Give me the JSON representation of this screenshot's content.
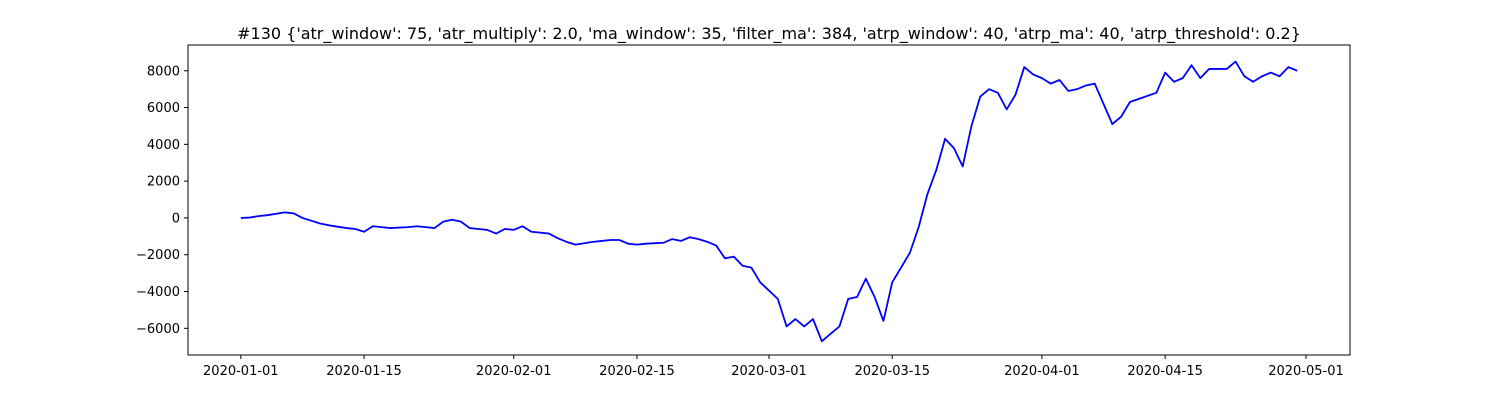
{
  "chart_data": {
    "type": "line",
    "title": "#130 {'atr_window': 75, 'atr_multiply': 2.0, 'ma_window': 35, 'filter_ma': 384, 'atrp_window': 40, 'atrp_ma': 40, 'atrp_threshold': 0.2}",
    "color": "#0000ff",
    "x": [
      "2020-01-01",
      "2020-01-02",
      "2020-01-03",
      "2020-01-04",
      "2020-01-06",
      "2020-01-07",
      "2020-01-08",
      "2020-01-09",
      "2020-01-10",
      "2020-01-11",
      "2020-01-13",
      "2020-01-14",
      "2020-01-15",
      "2020-01-16",
      "2020-01-17",
      "2020-01-18",
      "2020-01-20",
      "2020-01-21",
      "2020-01-22",
      "2020-01-23",
      "2020-01-24",
      "2020-01-25",
      "2020-01-26",
      "2020-01-27",
      "2020-01-28",
      "2020-01-29",
      "2020-01-30",
      "2020-01-31",
      "2020-02-01",
      "2020-02-02",
      "2020-02-03",
      "2020-02-04",
      "2020-02-05",
      "2020-02-06",
      "2020-02-07",
      "2020-02-08",
      "2020-02-10",
      "2020-02-11",
      "2020-02-12",
      "2020-02-13",
      "2020-02-14",
      "2020-02-15",
      "2020-02-16",
      "2020-02-18",
      "2020-02-19",
      "2020-02-20",
      "2020-02-21",
      "2020-02-22",
      "2020-02-23",
      "2020-02-24",
      "2020-02-25",
      "2020-02-26",
      "2020-02-27",
      "2020-02-28",
      "2020-02-29",
      "2020-03-02",
      "2020-03-03",
      "2020-03-04",
      "2020-03-05",
      "2020-03-06",
      "2020-03-07",
      "2020-03-09",
      "2020-03-10",
      "2020-03-11",
      "2020-03-12",
      "2020-03-13",
      "2020-03-14",
      "2020-03-15",
      "2020-03-17",
      "2020-03-18",
      "2020-03-19",
      "2020-03-20",
      "2020-03-21",
      "2020-03-22",
      "2020-03-23",
      "2020-03-24",
      "2020-03-25",
      "2020-03-26",
      "2020-03-27",
      "2020-03-28",
      "2020-03-29",
      "2020-03-30",
      "2020-03-31",
      "2020-04-01",
      "2020-04-02",
      "2020-04-03",
      "2020-04-04",
      "2020-04-05",
      "2020-04-06",
      "2020-04-07",
      "2020-04-08",
      "2020-04-09",
      "2020-04-10",
      "2020-04-11",
      "2020-04-14",
      "2020-04-15",
      "2020-04-16",
      "2020-04-17",
      "2020-04-18",
      "2020-04-19",
      "2020-04-20",
      "2020-04-22",
      "2020-04-23",
      "2020-04-24",
      "2020-04-25",
      "2020-04-26",
      "2020-04-27",
      "2020-04-28",
      "2020-04-29",
      "2020-04-30"
    ],
    "values": [
      0,
      20,
      100,
      150,
      300,
      250,
      0,
      -150,
      -300,
      -400,
      -550,
      -600,
      -750,
      -450,
      -500,
      -550,
      -500,
      -450,
      -500,
      -550,
      -200,
      -100,
      -200,
      -550,
      -600,
      -650,
      -850,
      -600,
      -650,
      -450,
      -750,
      -800,
      -850,
      -1100,
      -1300,
      -1450,
      -1300,
      -1250,
      -1200,
      -1200,
      -1400,
      -1450,
      -1400,
      -1350,
      -1150,
      -1250,
      -1050,
      -1150,
      -1300,
      -1500,
      -2200,
      -2100,
      -2600,
      -2700,
      -3500,
      -4400,
      -5900,
      -5500,
      -5900,
      -5500,
      -6700,
      -5900,
      -4400,
      -4300,
      -3300,
      -4300,
      -5600,
      -3500,
      -1900,
      -500,
      1300,
      2600,
      4300,
      3800,
      2800,
      5000,
      6600,
      7000,
      6800,
      5900,
      6700,
      8200,
      7800,
      7600,
      7300,
      7500,
      6900,
      7000,
      7200,
      7300,
      6200,
      5100,
      5500,
      6300,
      6800,
      7900,
      7400,
      7600,
      8300,
      7600,
      8100,
      8100,
      8500,
      7700,
      7400,
      7700,
      7900,
      7700,
      8200,
      8000
    ],
    "xlim": [
      "2019-12-26",
      "2020-05-06"
    ],
    "xticks": [
      "2020-01-01",
      "2020-01-15",
      "2020-02-01",
      "2020-02-15",
      "2020-03-01",
      "2020-03-15",
      "2020-04-01",
      "2020-04-15",
      "2020-05-01"
    ],
    "ylim": [
      -7450,
      9400
    ],
    "yticks": [
      {
        "value": -6000,
        "label": "−6000"
      },
      {
        "value": -4000,
        "label": "−4000"
      },
      {
        "value": -2000,
        "label": "−2000"
      },
      0,
      2000,
      4000,
      6000,
      8000
    ],
    "grid": false
  }
}
